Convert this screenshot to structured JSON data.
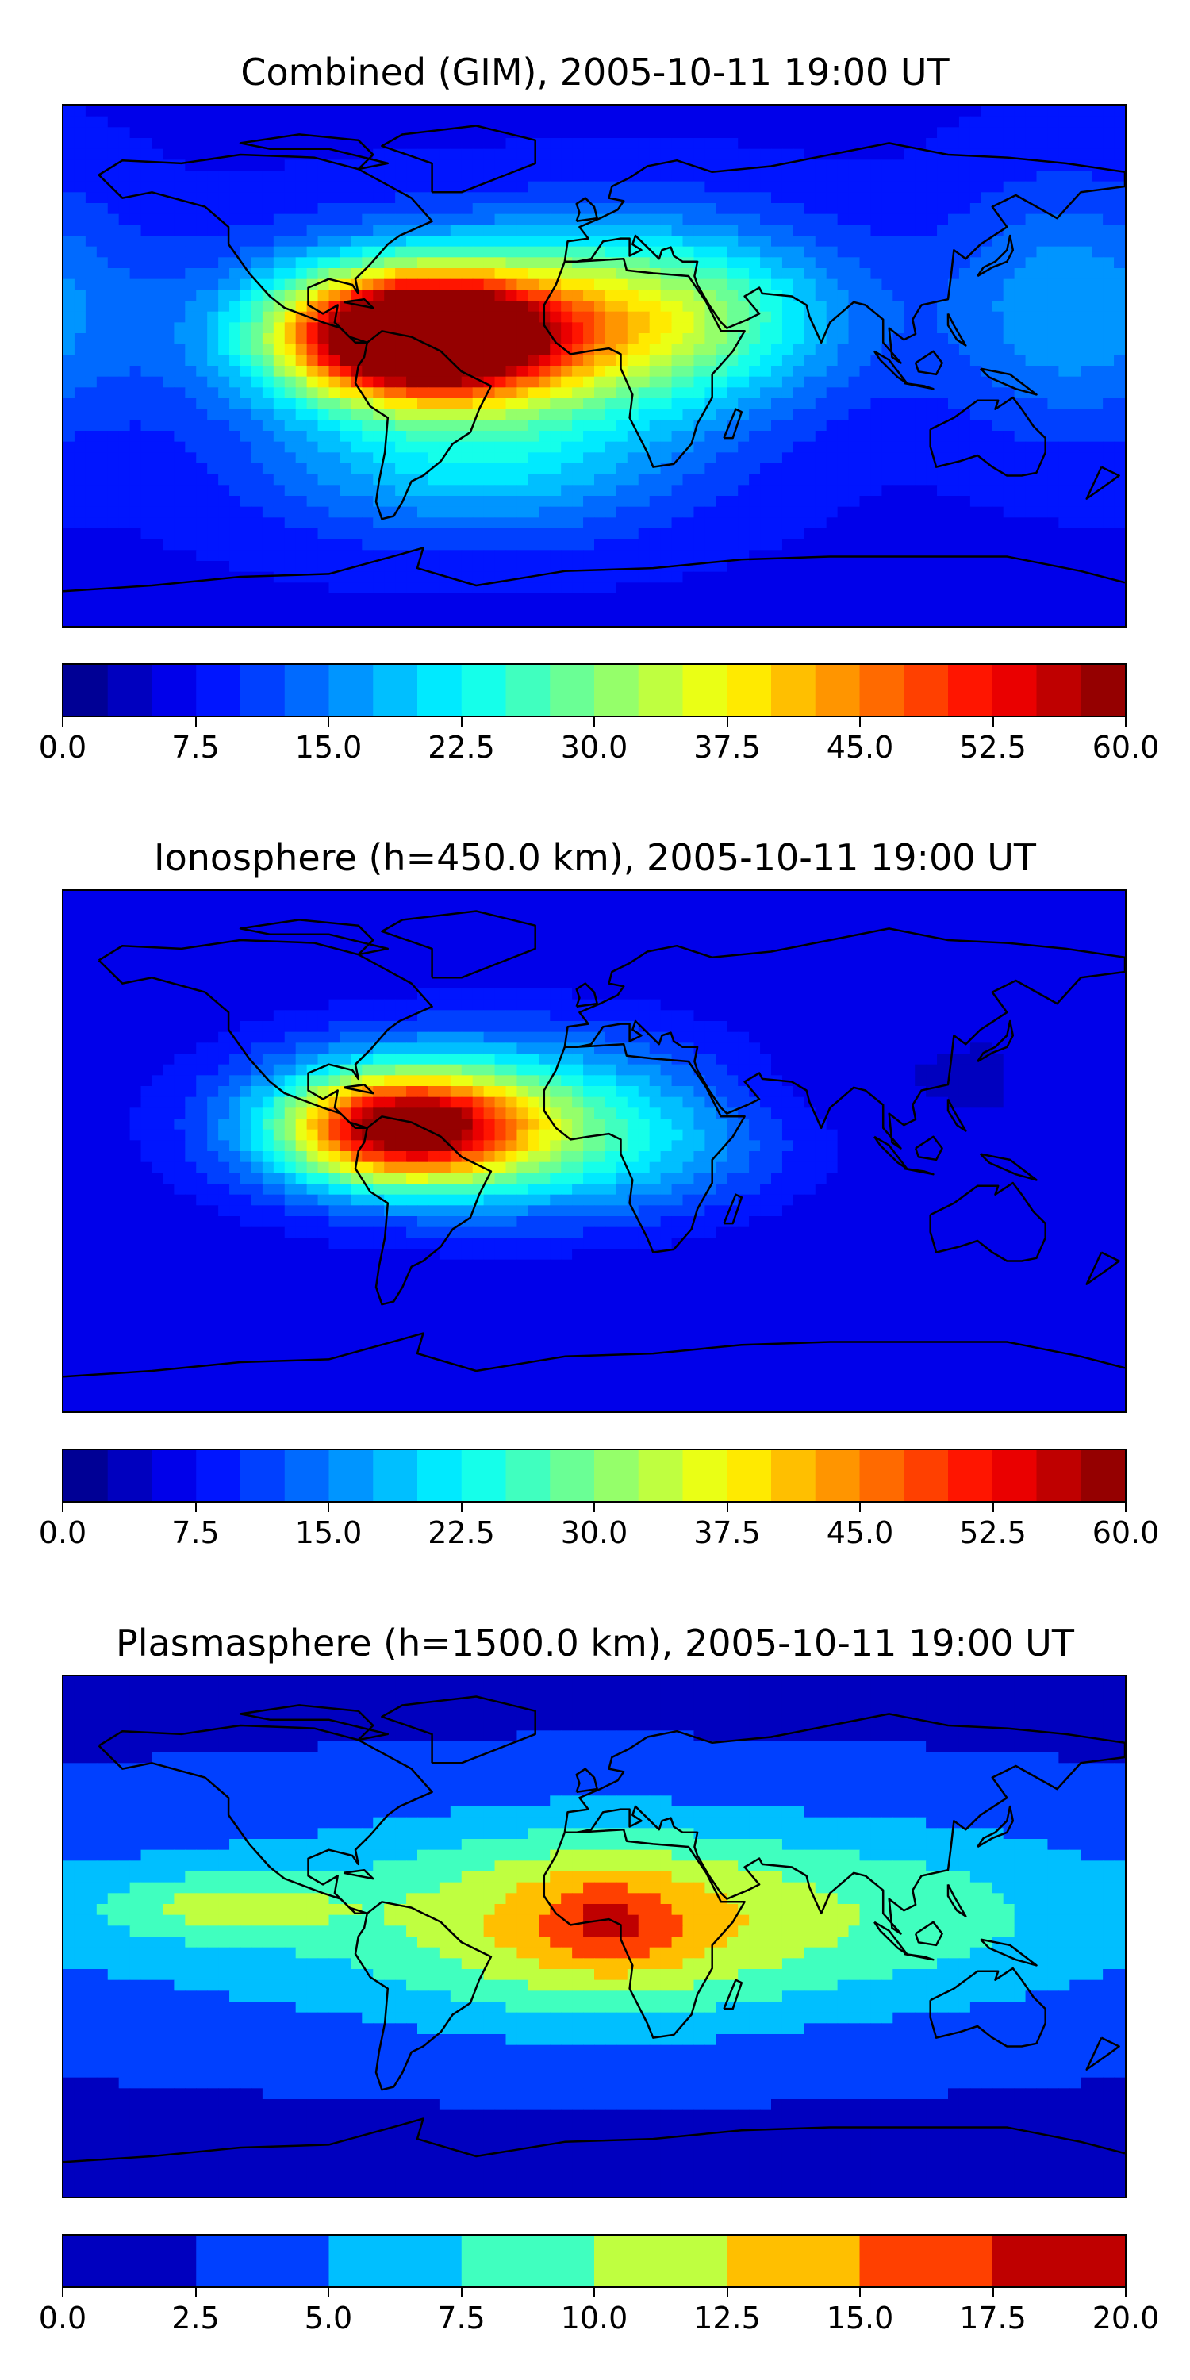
{
  "chart_data": [
    {
      "type": "heatmap",
      "title": "Combined (GIM), 2005-10-11 19:00 UT",
      "colorbar": {
        "range": [
          0,
          60
        ],
        "levels": 24,
        "tick_labels": [
          "0.0",
          "7.5",
          "15.0",
          "22.5",
          "30.0",
          "37.5",
          "45.0",
          "52.5",
          "60.0"
        ],
        "tick_values": [
          0,
          7.5,
          15,
          22.5,
          30,
          37.5,
          45,
          52.5,
          60
        ]
      },
      "field": {
        "background": 7,
        "blobs": [
          {
            "lon": -60,
            "lat": 10,
            "value": 54,
            "sx": 30,
            "sy": 14
          },
          {
            "lon": -40,
            "lat": 12,
            "value": 28,
            "sx": 55,
            "sy": 22
          },
          {
            "lon": 30,
            "lat": 18,
            "value": 16,
            "sx": 40,
            "sy": 22
          },
          {
            "lon": -40,
            "lat": -35,
            "value": 12,
            "sx": 50,
            "sy": 18
          },
          {
            "lon": 160,
            "lat": 20,
            "value": 10,
            "sx": 30,
            "sy": 30
          }
        ]
      }
    },
    {
      "type": "heatmap",
      "title": "Ionosphere  (h=450.0 km), 2005-10-11 19:00 UT",
      "colorbar": {
        "range": [
          0,
          60
        ],
        "levels": 24,
        "tick_labels": [
          "0.0",
          "7.5",
          "15.0",
          "22.5",
          "30.0",
          "37.5",
          "45.0",
          "52.5",
          "60.0"
        ],
        "tick_values": [
          0,
          7.5,
          15,
          22.5,
          30,
          37.5,
          45,
          52.5,
          60
        ]
      },
      "field": {
        "background": 5,
        "blobs": [
          {
            "lon": -65,
            "lat": 8,
            "value": 42,
            "sx": 28,
            "sy": 13
          },
          {
            "lon": -45,
            "lat": 10,
            "value": 18,
            "sx": 55,
            "sy": 22
          },
          {
            "lon": 10,
            "lat": 8,
            "value": 10,
            "sx": 40,
            "sy": 20
          },
          {
            "lon": 40,
            "lat": 20,
            "value": -3,
            "sx": 40,
            "sy": 12
          }
        ]
      }
    },
    {
      "type": "heatmap",
      "title": "Plasmasphere (h=1500.0 km), 2005-10-11 19:00 UT",
      "colorbar": {
        "range": [
          0,
          20
        ],
        "levels": 8,
        "tick_labels": [
          "0.0",
          "2.5",
          "5.0",
          "7.5",
          "10.0",
          "12.5",
          "15.0",
          "17.5",
          "20.0"
        ],
        "tick_values": [
          0,
          2.5,
          5,
          7.5,
          10,
          12.5,
          15,
          17.5,
          20
        ]
      },
      "field": {
        "background": 2,
        "blobs": [
          {
            "lon": 0,
            "lat": 5,
            "value": 6,
            "sx": 160,
            "sy": 28
          },
          {
            "lon": 5,
            "lat": 5,
            "value": 7,
            "sx": 45,
            "sy": 22
          },
          {
            "lon": 5,
            "lat": 5,
            "value": 3.5,
            "sx": 14,
            "sy": 10
          },
          {
            "lon": -125,
            "lat": 10,
            "value": 5,
            "sx": 30,
            "sy": 8
          },
          {
            "lon": 110,
            "lat": 10,
            "value": 2,
            "sx": 40,
            "sy": 20
          }
        ]
      }
    }
  ]
}
